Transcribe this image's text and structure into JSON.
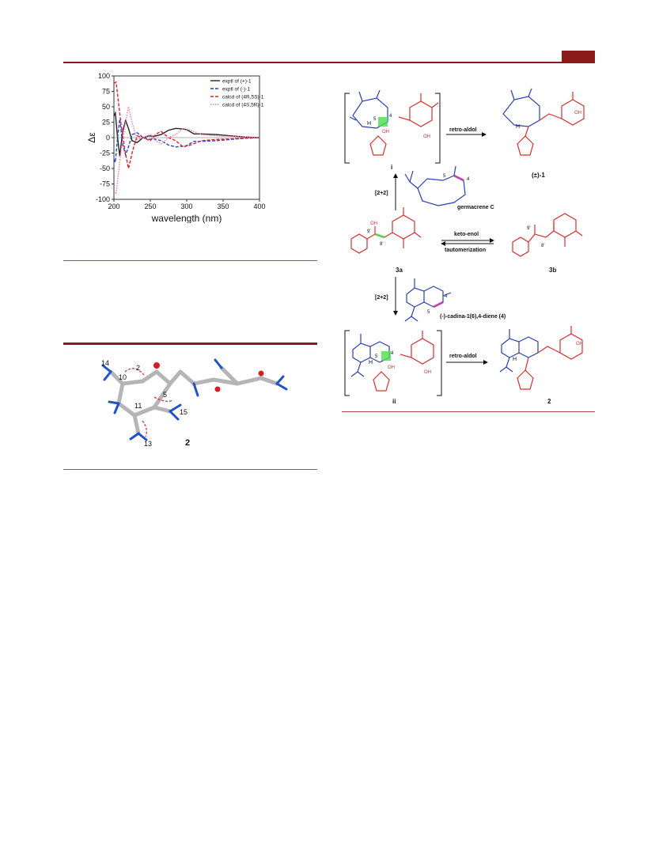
{
  "chart_data": {
    "type": "line",
    "xlabel": "wavelength (nm)",
    "ylabel": "Δε",
    "xlim": [
      200,
      400
    ],
    "ylim": [
      -100,
      100
    ],
    "x_ticks": [
      "200",
      "250",
      "300",
      "350",
      "400"
    ],
    "y_ticks": [
      "100",
      "75",
      "50",
      "25",
      "0",
      "-25",
      "-50",
      "-75",
      "-100"
    ],
    "grid": false,
    "legend_position": "top-right",
    "series": [
      {
        "name": "exptl of (+)-1",
        "color": "#222222",
        "dash": "solid",
        "x": [
          200,
          202,
          205,
          208,
          212,
          216,
          220,
          225,
          232,
          240,
          248,
          255,
          265,
          275,
          285,
          295,
          300,
          310,
          320,
          340,
          360,
          380,
          400
        ],
        "y": [
          35,
          40,
          0,
          -30,
          10,
          28,
          15,
          -5,
          -8,
          0,
          3,
          2,
          5,
          12,
          15,
          14,
          13,
          6,
          6,
          5,
          3,
          1,
          0
        ]
      },
      {
        "name": "exptl of (-)-1",
        "color": "#2244cc",
        "dash": "dashed",
        "x": [
          200,
          202,
          205,
          208,
          212,
          216,
          220,
          225,
          232,
          240,
          248,
          255,
          265,
          275,
          285,
          295,
          300,
          310,
          320,
          340,
          360,
          380,
          400
        ],
        "y": [
          -35,
          -40,
          0,
          30,
          -10,
          -28,
          -15,
          5,
          8,
          0,
          -3,
          -2,
          -5,
          -12,
          -15,
          -14,
          -13,
          -6,
          -6,
          -5,
          -3,
          -1,
          0
        ]
      },
      {
        "name": "calcd of (4R,5S)-1",
        "color": "#e0202a",
        "dash": "dashed",
        "x": [
          200,
          203,
          206,
          210,
          215,
          220,
          226,
          232,
          240,
          250,
          258,
          265,
          275,
          285,
          295,
          305,
          320,
          340,
          360,
          380,
          400
        ],
        "y": [
          88,
          90,
          60,
          20,
          -20,
          -50,
          -20,
          3,
          0,
          -5,
          6,
          10,
          0,
          -5,
          -15,
          -12,
          -5,
          -3,
          -2,
          -1,
          0
        ]
      },
      {
        "name": "calcd of (4S,5R)-1",
        "color": "#f07ab0",
        "dash": "dotted",
        "x": [
          200,
          203,
          206,
          210,
          215,
          220,
          226,
          232,
          240,
          250,
          258,
          265,
          275,
          285,
          295,
          305,
          320,
          340,
          360,
          380,
          400
        ],
        "y": [
          -88,
          -90,
          -60,
          -20,
          20,
          50,
          20,
          -3,
          0,
          5,
          -6,
          -10,
          0,
          5,
          15,
          12,
          5,
          3,
          2,
          1,
          0
        ]
      }
    ]
  },
  "model": {
    "atom_labels": [
      "14",
      "2",
      "10",
      "5",
      "11",
      "15",
      "13"
    ],
    "compound": "2"
  },
  "scheme": {
    "intermediate_i": "i",
    "intermediate_ii": "ii",
    "product_1": "(±)-1",
    "product_2": "2",
    "sm_3a": "3a",
    "sm_3b": "3b",
    "retro_aldol_top": "retro-aldol",
    "retro_aldol_bottom": "retro-aldol",
    "cyclo_top": "[2+2]",
    "cyclo_bottom": "[2+2]",
    "germacrene": "germacrene C",
    "cadina": "(-)-cadina-1(6),4-diene (4)",
    "keto_enol": "keto-enol",
    "tautomerization": "tautomerization",
    "atom_labels": {
      "n5": "5",
      "n4": "4",
      "n9p": "9'",
      "n8p": "8'",
      "oh": "OH",
      "o": "O",
      "h": "H"
    }
  }
}
